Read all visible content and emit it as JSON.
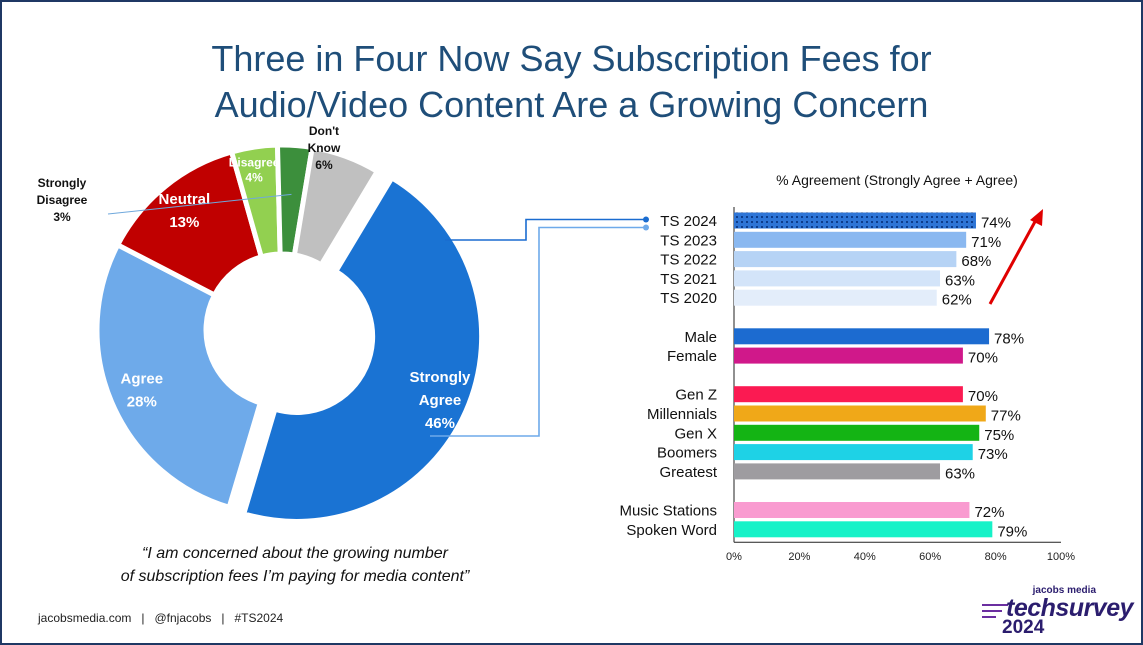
{
  "title": {
    "line1": "Three in Four Now Say Subscription Fees for",
    "line2": "Audio/Video Content Are a Growing Concern"
  },
  "chart_data": [
    {
      "type": "pie",
      "variant": "donut",
      "slices": [
        {
          "label_lines": [
            "Strongly",
            "Agree"
          ],
          "value": 46,
          "value_label": "46%",
          "color": "#1a73d3"
        },
        {
          "label_lines": [
            "Agree"
          ],
          "value": 28,
          "value_label": "28%",
          "color": "#6eaaea"
        },
        {
          "label_lines": [
            "Neutral"
          ],
          "value": 13,
          "value_label": "13%",
          "color": "#c00000"
        },
        {
          "label_lines": [
            "Disagree"
          ],
          "value": 4,
          "value_label": "4%",
          "color": "#92d050"
        },
        {
          "label_lines": [
            "Strongly",
            "Disagree"
          ],
          "value": 3,
          "value_label": "3%",
          "color": "#3c8f3c"
        },
        {
          "label_lines": [
            "Don't",
            "Know"
          ],
          "value": 6,
          "value_label": "6%",
          "color": "#c0c0c0"
        }
      ]
    },
    {
      "type": "bar",
      "orientation": "horizontal",
      "title": "% Agreement (Strongly Agree + Agree)",
      "xlim": [
        0,
        100
      ],
      "ticks": [
        "0%",
        "20%",
        "40%",
        "60%",
        "80%",
        "100%"
      ],
      "groups": [
        {
          "bars": [
            {
              "label": "TS 2024",
              "value": 74,
              "value_label": "74%",
              "color": "#2e75d6",
              "pattern": true
            },
            {
              "label": "TS 2023",
              "value": 71,
              "value_label": "71%",
              "color": "#8ab8f0"
            },
            {
              "label": "TS 2022",
              "value": 68,
              "value_label": "68%",
              "color": "#b6d3f5"
            },
            {
              "label": "TS 2021",
              "value": 63,
              "value_label": "63%",
              "color": "#d3e4f9"
            },
            {
              "label": "TS 2020",
              "value": 62,
              "value_label": "62%",
              "color": "#e3edfa"
            }
          ]
        },
        {
          "bars": [
            {
              "label": "Male",
              "value": 78,
              "value_label": "78%",
              "color": "#1c6bd0"
            },
            {
              "label": "Female",
              "value": 70,
              "value_label": "70%",
              "color": "#d0188a"
            }
          ]
        },
        {
          "bars": [
            {
              "label": "Gen Z",
              "value": 70,
              "value_label": "70%",
              "color": "#fb1a52"
            },
            {
              "label": "Millennials",
              "value": 77,
              "value_label": "77%",
              "color": "#f0a818"
            },
            {
              "label": "Gen X",
              "value": 75,
              "value_label": "75%",
              "color": "#14b414"
            },
            {
              "label": "Boomers",
              "value": 73,
              "value_label": "73%",
              "color": "#1ed2e6"
            },
            {
              "label": "Greatest",
              "value": 63,
              "value_label": "63%",
              "color": "#9e9ca0"
            }
          ]
        },
        {
          "bars": [
            {
              "label": "Music Stations",
              "value": 72,
              "value_label": "72%",
              "color": "#f99bd0"
            },
            {
              "label": "Spoken Word",
              "value": 79,
              "value_label": "79%",
              "color": "#16f2c8"
            }
          ]
        }
      ]
    }
  ],
  "quote": {
    "line1": "“I am concerned about the growing number",
    "line2": "of subscription fees I’m paying for media content”"
  },
  "footer": {
    "text": "jacobsmedia.com   |   @fnjacobs   |   #TS2024"
  },
  "logo": {
    "small": "jacobs media",
    "main": "techsurvey",
    "year": "2024"
  }
}
